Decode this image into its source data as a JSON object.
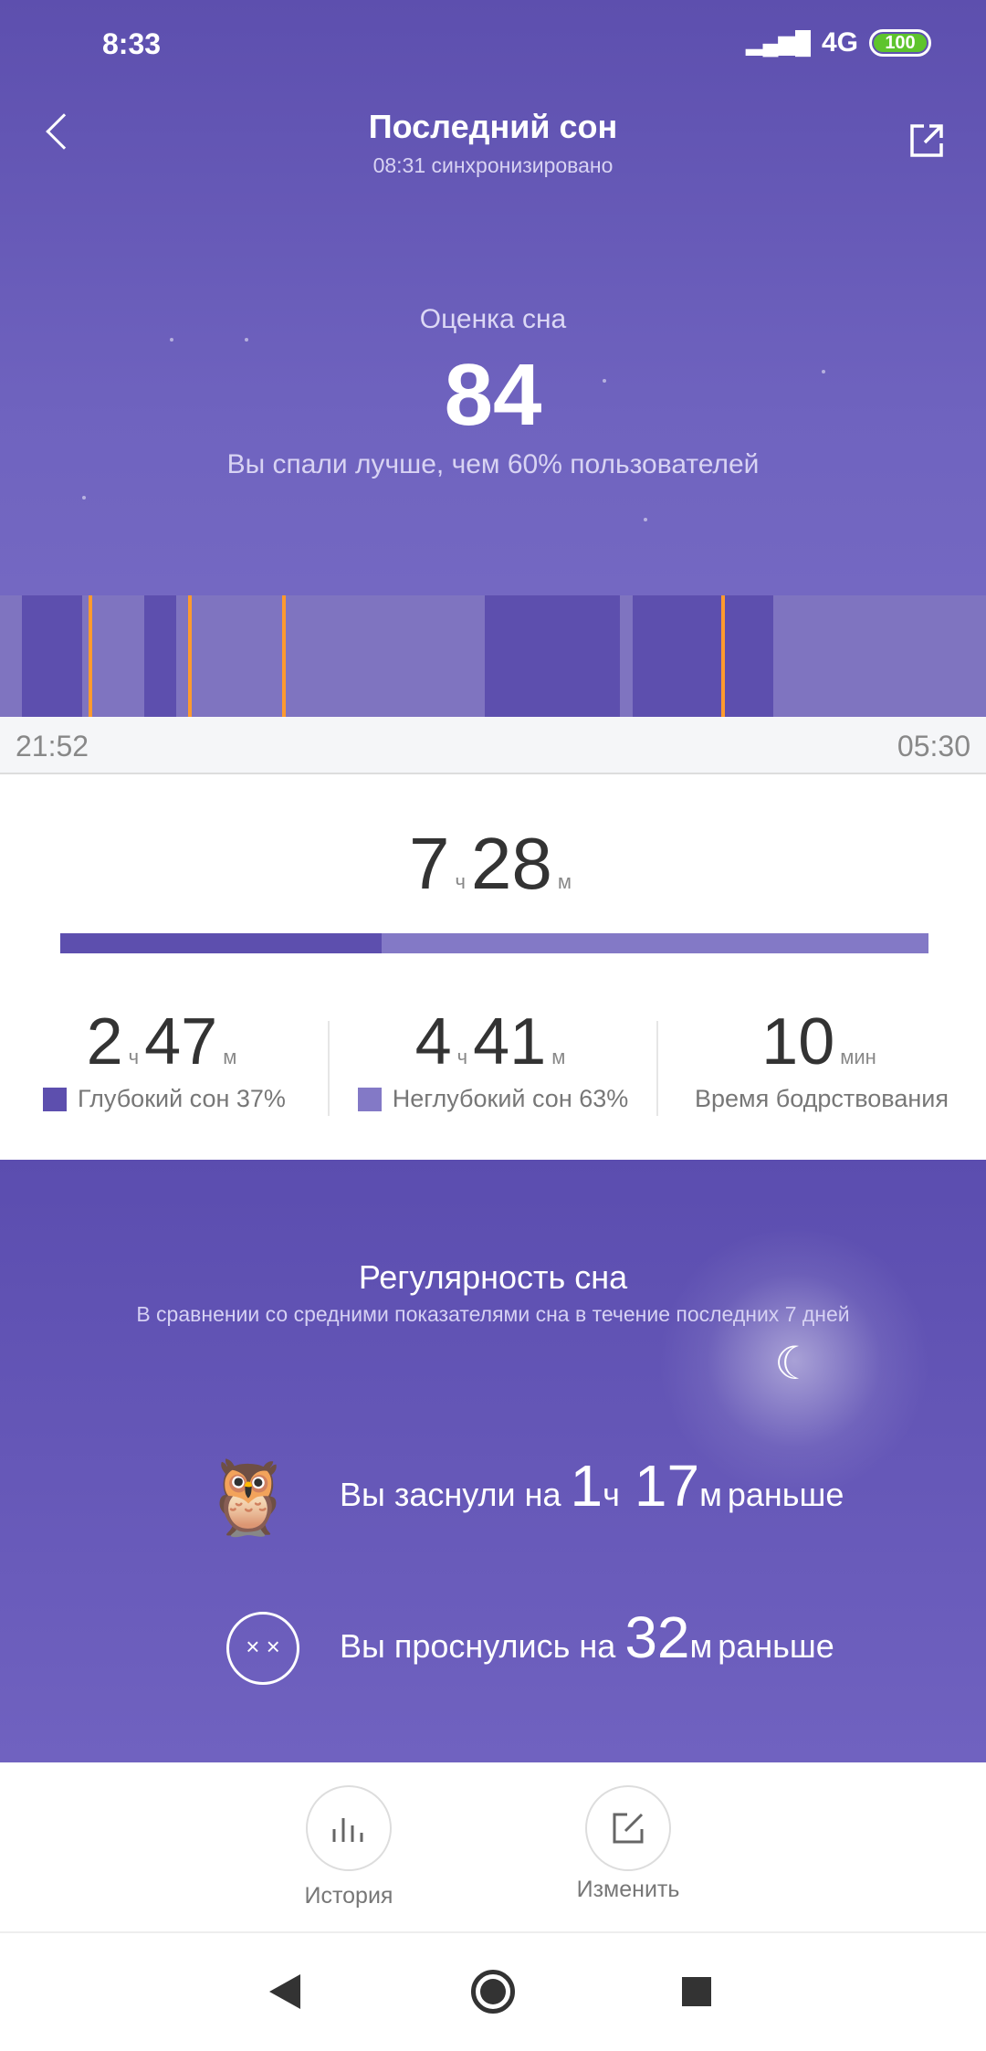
{
  "status": {
    "time": "8:33",
    "network": "4G",
    "battery": "100"
  },
  "header": {
    "title": "Последний сон",
    "subtitle": "08:31 синхронизировано"
  },
  "score": {
    "label": "Оценка сна",
    "value": "84",
    "comparison": "Вы спали лучше, чем 60% пользователей"
  },
  "colors": {
    "deep": "#5d4fae",
    "light": "#7f74c0",
    "awake": "#ff9a2e",
    "accent": "#6a5cbb"
  },
  "chart_data": {
    "type": "timeline",
    "start": "21:52",
    "end": "05:30",
    "segments": [
      {
        "stage": "light",
        "from": "21:52",
        "to": "22:02"
      },
      {
        "stage": "deep",
        "from": "22:02",
        "to": "22:30"
      },
      {
        "stage": "light",
        "from": "22:30",
        "to": "22:59"
      },
      {
        "stage": "deep",
        "from": "22:59",
        "to": "23:14"
      },
      {
        "stage": "light",
        "from": "23:14",
        "to": "01:37"
      },
      {
        "stage": "deep",
        "from": "01:37",
        "to": "02:40"
      },
      {
        "stage": "light",
        "from": "02:40",
        "to": "02:46"
      },
      {
        "stage": "deep",
        "from": "02:46",
        "to": "03:51"
      },
      {
        "stage": "light",
        "from": "03:51",
        "to": "05:30"
      }
    ],
    "awake_marks": [
      "22:34",
      "23:20",
      "00:04",
      "03:28"
    ]
  },
  "total": {
    "hours": "7",
    "h_unit": "ч",
    "minutes": "28",
    "m_unit": "м",
    "deep_percent": 37
  },
  "stats": [
    {
      "h": "2",
      "hu": "ч",
      "m": "47",
      "mu": "м",
      "label": "Глубокий сон 37%"
    },
    {
      "h": "4",
      "hu": "ч",
      "m": "41",
      "mu": "м",
      "label": "Неглубокий сон 63%"
    },
    {
      "m": "10",
      "mu": "мин",
      "label": "Время бодрствования"
    }
  ],
  "regularity": {
    "title": "Регулярность сна",
    "subtitle": "В сравнении со средними показателями сна в течение последних 7 дней",
    "fell_asleep": {
      "prefix": "Вы заснули на",
      "h": "1",
      "hu": "ч",
      "m": "17",
      "mu": "м",
      "suffix": "раньше"
    },
    "woke_up": {
      "prefix": "Вы проснулись на",
      "m": "32",
      "mu": "м",
      "suffix": "раньше"
    }
  },
  "actions": {
    "history": "История",
    "edit": "Изменить"
  }
}
